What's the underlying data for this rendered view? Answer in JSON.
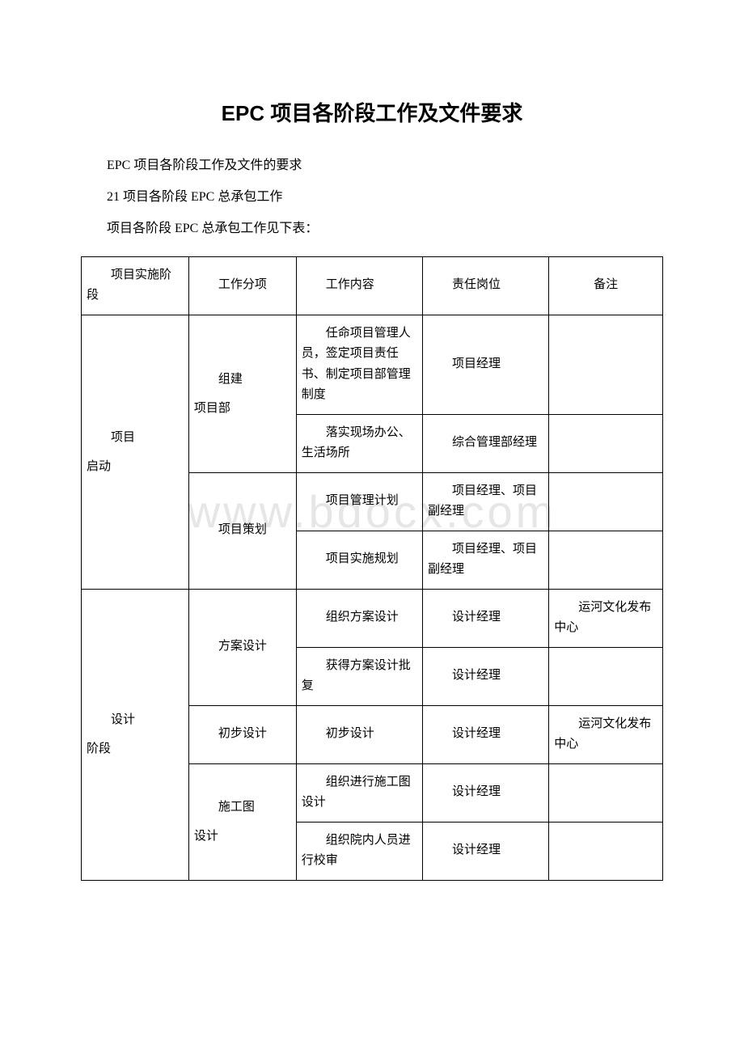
{
  "title": "EPC 项目各阶段工作及文件要求",
  "intro": [
    "EPC 项目各阶段工作及文件的要求",
    "21 项目各阶段 EPC 总承包工作",
    "项目各阶段 EPC 总承包工作见下表："
  ],
  "watermark": "www.bdocx.com",
  "table": {
    "columns": [
      "项目实施阶段",
      "工作分项",
      "工作内容",
      "责任岗位",
      "备注"
    ],
    "header_fontsize": 15,
    "cell_fontsize": 15,
    "border_color": "#000000",
    "background_color": "#ffffff",
    "col_widths_pct": [
      17,
      17,
      20,
      20,
      18
    ],
    "rows": [
      {
        "phase": "项目\n启动",
        "phase_rowspan": 4,
        "subgroup": "组建\n项目部",
        "subgroup_rowspan": 2,
        "content": "任命项目管理人员，签定项目责任书、制定项目部管理制度",
        "role": "项目经理",
        "note": ""
      },
      {
        "content": "落实现场办公、生活场所",
        "role": "综合管理部经理",
        "note": ""
      },
      {
        "subgroup": "项目策划",
        "subgroup_rowspan": 2,
        "content": "项目管理计划",
        "role": "项目经理、项目副经理",
        "note": ""
      },
      {
        "content": "项目实施规划",
        "role": "项目经理、项目副经理",
        "note": ""
      },
      {
        "phase": "设计\n阶段",
        "phase_rowspan": 5,
        "subgroup": "方案设计",
        "subgroup_rowspan": 2,
        "content": "组织方案设计",
        "role": "设计经理",
        "note": "运河文化发布中心"
      },
      {
        "content": "获得方案设计批复",
        "role": "设计经理",
        "note": ""
      },
      {
        "subgroup": "初步设计",
        "subgroup_rowspan": 1,
        "content": "初步设计",
        "role": "设计经理",
        "note": "运河文化发布中心"
      },
      {
        "subgroup": "施工图\n设计",
        "subgroup_rowspan": 2,
        "content": "组织进行施工图设计",
        "role": "设计经理",
        "note": ""
      },
      {
        "content": "组织院内人员进行校审",
        "role": "设计经理",
        "note": ""
      }
    ]
  }
}
